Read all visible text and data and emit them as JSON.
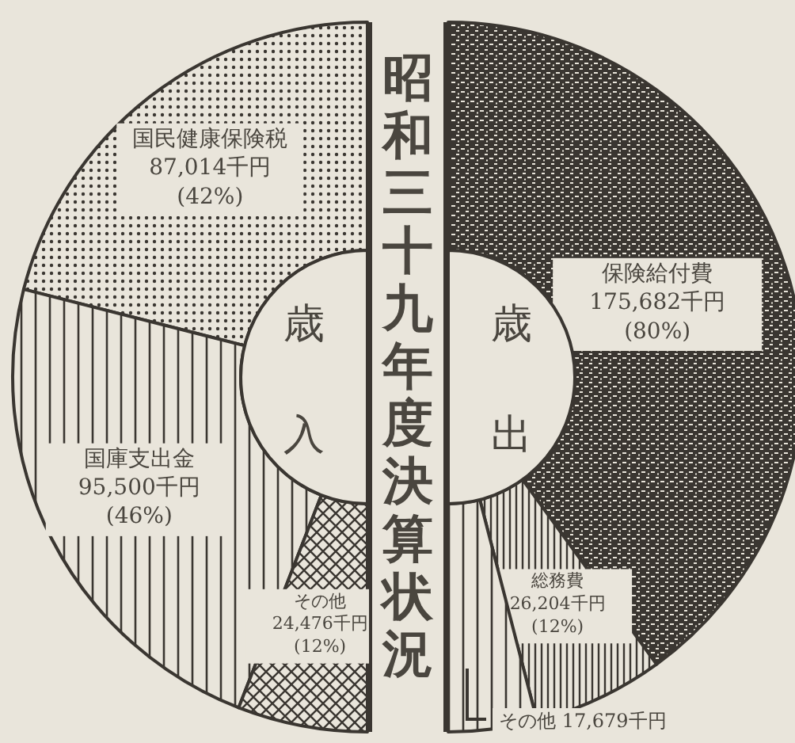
{
  "chart_data": [
    {
      "type": "donut",
      "title": "歳入",
      "categories": [
        "国民健康保険税",
        "国庫支出金",
        "その他"
      ],
      "values": [
        87014,
        95500,
        24476
      ],
      "colors": [
        "#3a3631",
        "#3a3631",
        "#3a3631"
      ],
      "value_labels": [
        "87,014千円(42%)",
        "95,500千円(46%)",
        "24,476千円(12%)"
      ]
    },
    {
      "type": "other",
      "title": "昭和三十九年度決算状況"
    },
    {
      "type": "donut",
      "title": "歳出",
      "categories": [
        "保険給付費",
        "総務費",
        "その他"
      ],
      "values": [
        175682,
        26204,
        17679
      ],
      "colors": [
        "#3a3631",
        "#3a3631",
        "#3a3631"
      ],
      "value_labels": [
        "175,682千円(80%)",
        "26,204千円(12%)",
        "17,679千円"
      ]
    }
  ]
}
